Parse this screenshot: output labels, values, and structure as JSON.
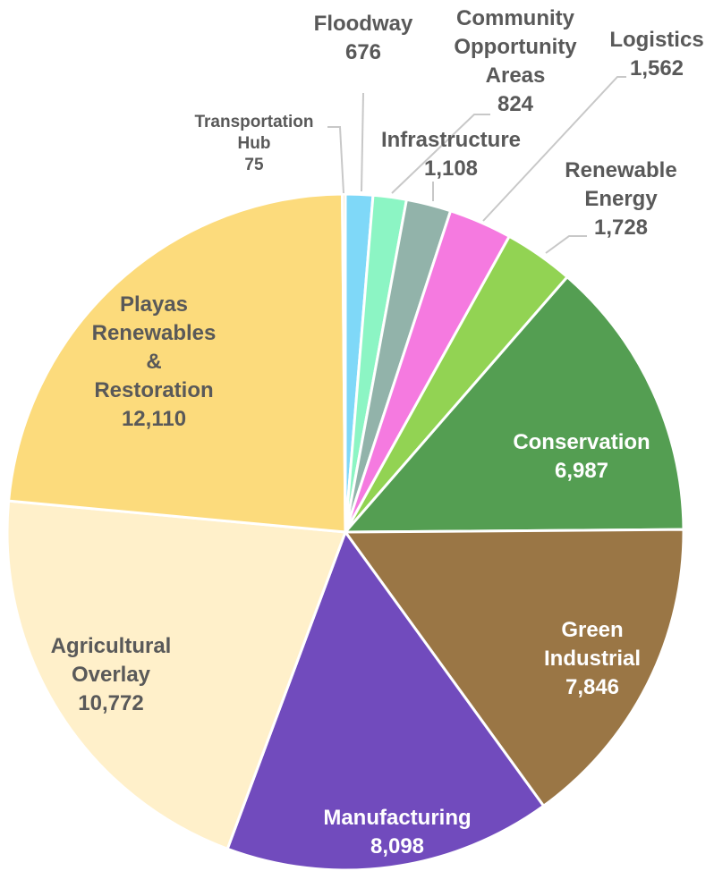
{
  "chart_data": {
    "type": "pie",
    "title": "",
    "slices": [
      {
        "label": [
          "Floodway"
        ],
        "value": 676,
        "value_text": "676",
        "color": "#7fd8f8"
      },
      {
        "label": [
          "Community",
          "Opportunity",
          "Areas"
        ],
        "value": 824,
        "value_text": "824",
        "color": "#8cf5c4"
      },
      {
        "label": [
          "Infrastructure"
        ],
        "value": 1108,
        "value_text": "1,108",
        "color": "#92b3aa"
      },
      {
        "label": [
          "Logistics"
        ],
        "value": 1562,
        "value_text": "1,562",
        "color": "#f57ae0"
      },
      {
        "label": [
          "Renewable",
          "Energy"
        ],
        "value": 1728,
        "value_text": "1,728",
        "color": "#92d353"
      },
      {
        "label": [
          "Conservation"
        ],
        "value": 6987,
        "value_text": "6,987",
        "color": "#549e52"
      },
      {
        "label": [
          "Green",
          "Industrial"
        ],
        "value": 7846,
        "value_text": "7,846",
        "color": "#9a7645"
      },
      {
        "label": [
          "Manufacturing"
        ],
        "value": 8098,
        "value_text": "8,098",
        "color": "#714bbd"
      },
      {
        "label": [
          "Agricultural",
          "Overlay"
        ],
        "value": 10772,
        "value_text": "10,772",
        "color": "#fff0ca"
      },
      {
        "label": [
          "Playas",
          "Renewables",
          "&",
          "Restoration"
        ],
        "value": 12110,
        "value_text": "12,110",
        "color": "#fcdb7c"
      },
      {
        "label": [
          "Transportation",
          "Hub"
        ],
        "value": 75,
        "value_text": "75",
        "color": "#fbd98a"
      }
    ]
  }
}
